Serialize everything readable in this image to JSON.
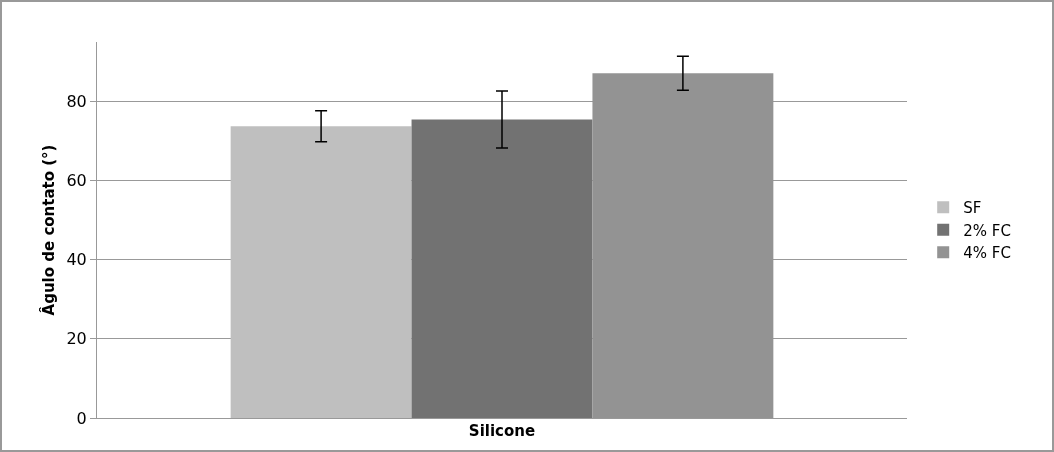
{
  "chart_data": {
    "type": "bar",
    "ylabel": "Âgulo de contato (°)",
    "xlabel": "Silicone",
    "categories": [
      null
    ],
    "series": [
      {
        "name": "SF",
        "color": "#bfbfbf",
        "values": [
          73.7
        ],
        "errors": [
          3.9
        ]
      },
      {
        "name": "2% FC",
        "color": "#727272",
        "values": [
          75.4
        ],
        "errors": [
          7.2
        ]
      },
      {
        "name": "4% FC",
        "color": "#939393",
        "values": [
          87.1
        ],
        "errors": [
          4.3
        ]
      }
    ],
    "ylim": [
      0,
      95
    ],
    "yticks": [
      0,
      20,
      40,
      60,
      80
    ],
    "grid": "y",
    "legend": "right"
  }
}
